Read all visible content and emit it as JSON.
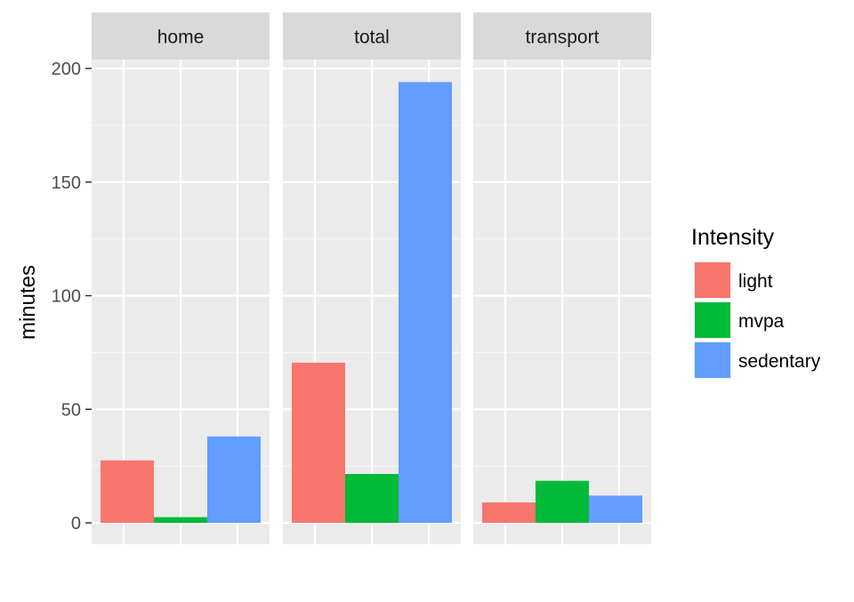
{
  "chart_data": {
    "type": "bar",
    "title": "",
    "xlabel": "",
    "ylabel": "minutes",
    "ylim": [
      0,
      212
    ],
    "yticks": [
      0,
      50,
      100,
      150,
      200
    ],
    "grid": true,
    "facets": [
      "home",
      "total",
      "transport"
    ],
    "categories": [
      "light",
      "mvpa",
      "sedentary"
    ],
    "series": [
      {
        "name": "light",
        "color": "#F8766D",
        "values": [
          27.5,
          70.5,
          9
        ]
      },
      {
        "name": "mvpa",
        "color": "#00BA38",
        "values": [
          2.5,
          21.5,
          18.5
        ]
      },
      {
        "name": "sedentary",
        "color": "#619CFF",
        "values": [
          38,
          194,
          12
        ]
      }
    ],
    "legend": {
      "title": "Intensity",
      "position": "right"
    }
  }
}
